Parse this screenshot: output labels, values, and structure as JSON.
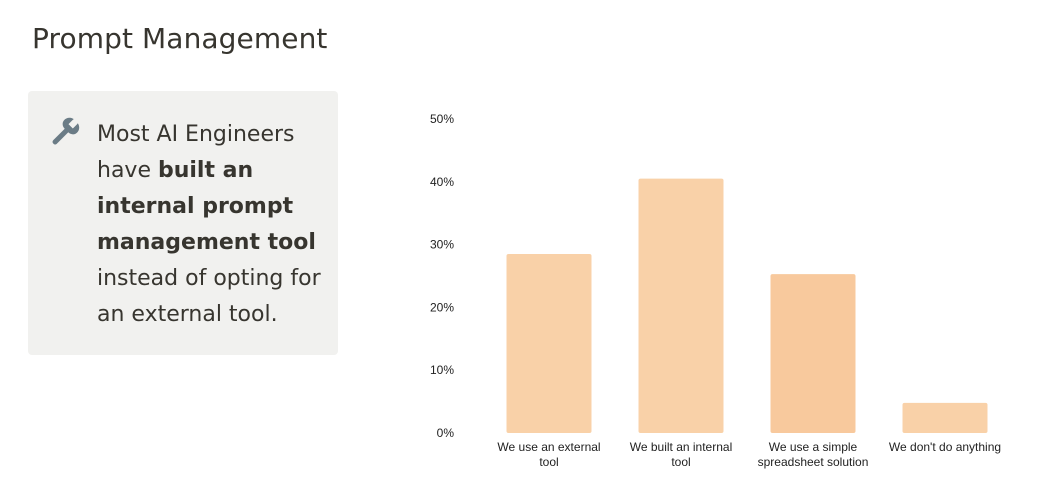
{
  "page": {
    "title": "Prompt Management"
  },
  "callout": {
    "icon": "wrench-icon",
    "text_prefix": "Most AI Engineers have ",
    "text_bold": "built an internal prompt management tool",
    "text_suffix": " instead of opting for an external tool."
  },
  "chart_data": {
    "type": "bar",
    "categories": [
      [
        "We use an external",
        "tool"
      ],
      [
        "We built an internal",
        "tool"
      ],
      [
        "We use a simple",
        "spreadsheet solution"
      ],
      [
        "We don't do anything"
      ]
    ],
    "values": [
      28.5,
      40.5,
      25.3,
      4.8
    ],
    "yticks": [
      "0%",
      "10%",
      "20%",
      "30%",
      "40%",
      "50%"
    ],
    "ylim": [
      0,
      50
    ],
    "grid": false,
    "bar_colors": [
      "#f9d1a8",
      "#f9d1a8",
      "#f8c99d",
      "#f9d1a8"
    ]
  }
}
